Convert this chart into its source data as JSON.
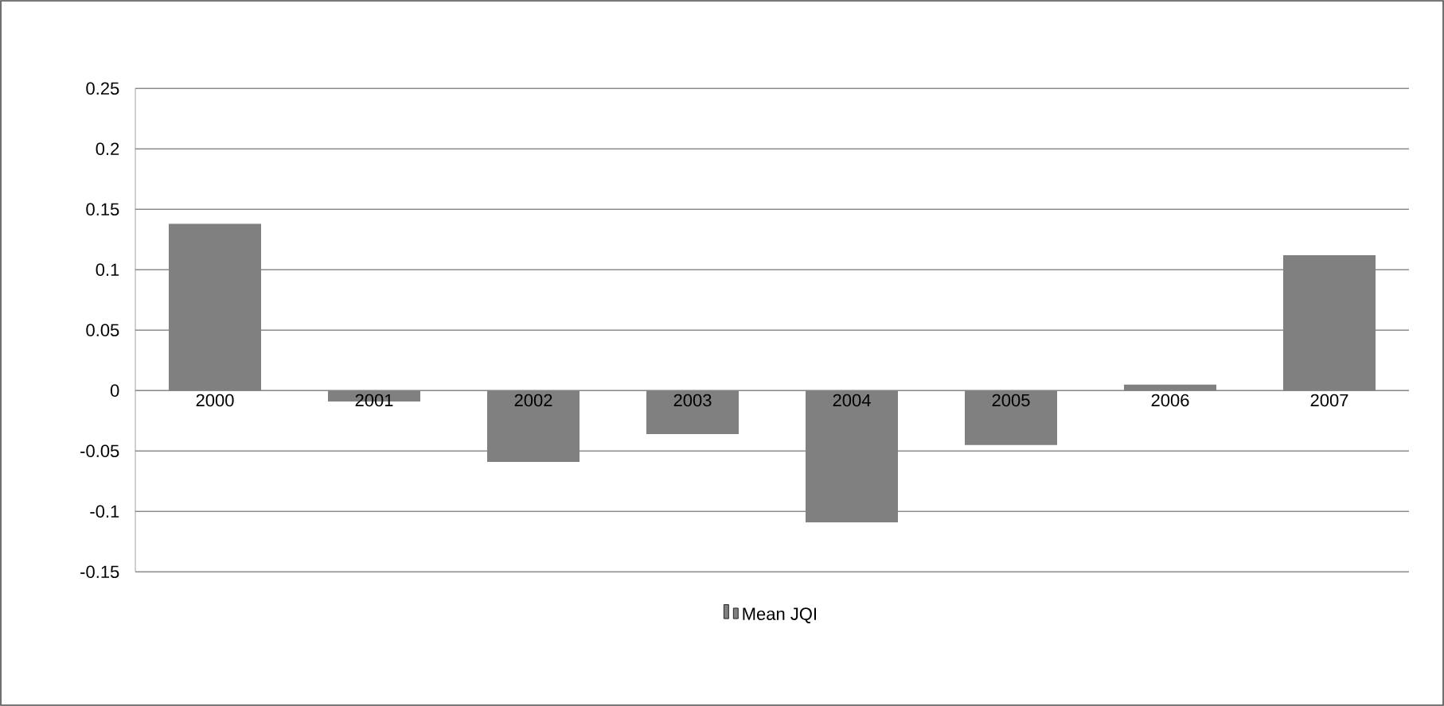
{
  "chart_data": {
    "type": "bar",
    "categories": [
      "2000",
      "2001",
      "2002",
      "2003",
      "2004",
      "2005",
      "2006",
      "2007"
    ],
    "series": [
      {
        "name": "Mean JQI",
        "color": "#808080",
        "values": [
          0.138,
          -0.009,
          -0.059,
          -0.036,
          -0.109,
          -0.045,
          0.005,
          0.112
        ]
      }
    ],
    "ylim": [
      -0.15,
      0.25
    ],
    "yticks": [
      -0.15,
      -0.1,
      -0.05,
      0,
      0.05,
      0.1,
      0.15,
      0.2,
      0.25
    ],
    "grid": "y",
    "legend": "bottom"
  }
}
